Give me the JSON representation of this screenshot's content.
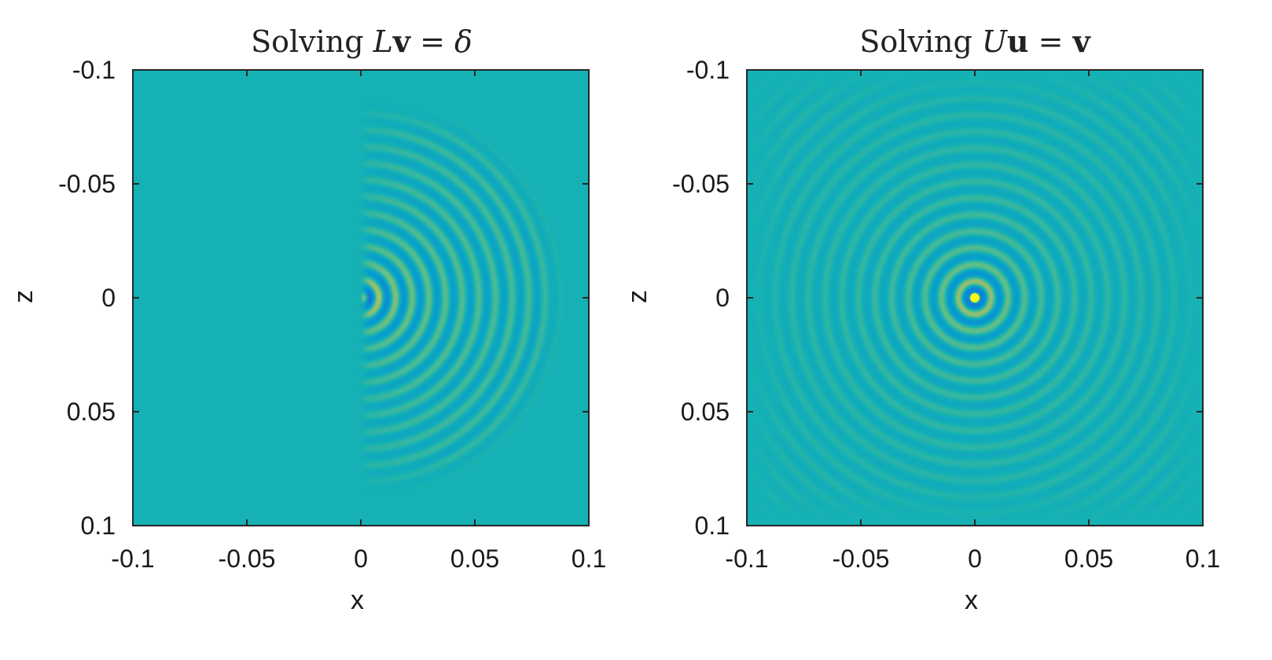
{
  "chart_data": [
    {
      "type": "heatmap",
      "title": {
        "prefix": "Solving ",
        "math": [
          {
            "t": "L",
            "s": "italic"
          },
          {
            "t": "v",
            "s": "bold"
          },
          {
            "t": " = ",
            "s": "normal"
          },
          {
            "t": "δ",
            "s": "italic"
          }
        ]
      },
      "xlabel": "x",
      "ylabel": "z",
      "xlim": [
        -0.1,
        0.1
      ],
      "ylim": [
        -0.1,
        0.1
      ],
      "y_reversed": true,
      "xticks": [
        "-0.1",
        "-0.05",
        "0",
        "0.05",
        "0.1"
      ],
      "yticks": [
        "-0.1",
        "-0.05",
        "0",
        "0.05",
        "0.1"
      ],
      "field": "half_wavefield",
      "source": [
        0,
        0
      ],
      "colormap": "parula",
      "grid": false
    },
    {
      "type": "heatmap",
      "title": {
        "prefix": "Solving ",
        "math": [
          {
            "t": "U",
            "s": "italic"
          },
          {
            "t": "u",
            "s": "bold"
          },
          {
            "t": " = ",
            "s": "normal"
          },
          {
            "t": "v",
            "s": "bold"
          }
        ]
      },
      "xlabel": "x",
      "ylabel": "z",
      "xlim": [
        -0.1,
        0.1
      ],
      "ylim": [
        -0.1,
        0.1
      ],
      "y_reversed": true,
      "xticks": [
        "-0.1",
        "-0.05",
        "0",
        "0.05",
        "0.1"
      ],
      "yticks": [
        "-0.1",
        "-0.05",
        "0",
        "0.05",
        "0.1"
      ],
      "field": "full_wavefield",
      "source": [
        0,
        0
      ],
      "colormap": "parula",
      "grid": false
    }
  ]
}
